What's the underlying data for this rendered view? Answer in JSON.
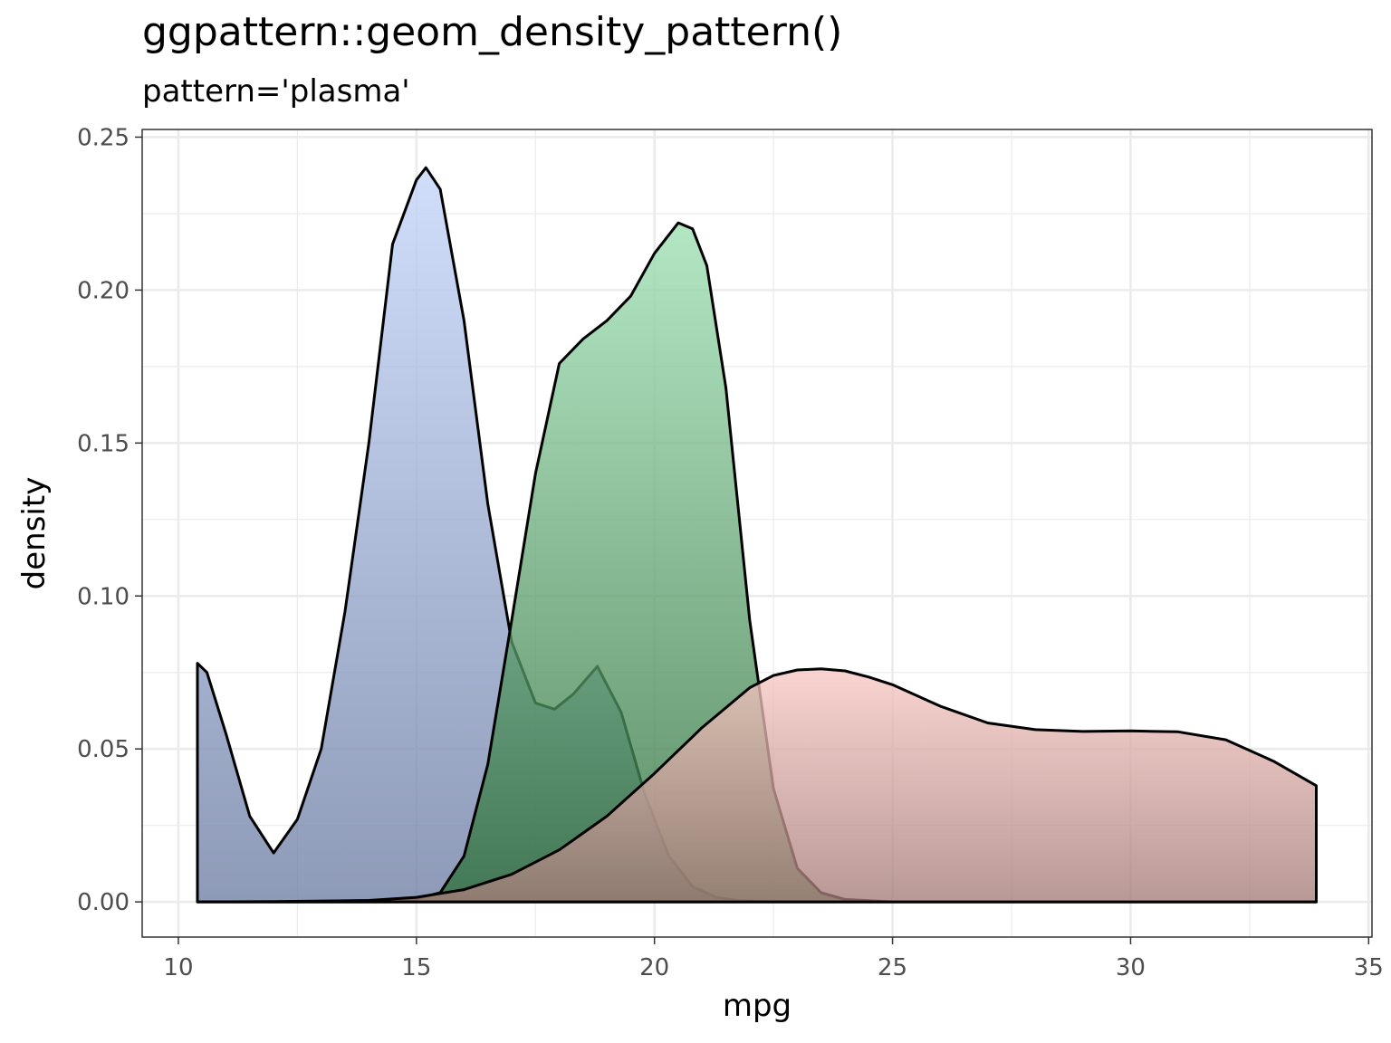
{
  "chart_data": {
    "type": "area",
    "title": "ggpattern::geom_density_pattern()",
    "subtitle": "pattern='plasma'",
    "xlabel": "mpg",
    "ylabel": "density",
    "xlim": [
      9.24,
      35.07
    ],
    "ylim": [
      -0.0115,
      0.2525
    ],
    "x_ticks": [
      10,
      15,
      20,
      25,
      30,
      35
    ],
    "x_tick_labels": [
      "10",
      "15",
      "20",
      "25",
      "30",
      "35"
    ],
    "y_ticks": [
      0,
      0.05,
      0.1,
      0.15,
      0.2,
      0.25
    ],
    "y_tick_labels": [
      "0.00",
      "0.05",
      "0.10",
      "0.15",
      "0.20",
      "0.25"
    ],
    "grid": true,
    "legend": "none",
    "series": [
      {
        "color_top": "#c3d5fa",
        "color_bottom": "#6e7ea3",
        "x": [
          10.4,
          10.6,
          11.0,
          11.5,
          12.0,
          12.5,
          13.0,
          13.5,
          14.0,
          14.5,
          15.0,
          15.2,
          15.5,
          16.0,
          16.5,
          17.0,
          17.5,
          17.9,
          18.3,
          18.8,
          19.3,
          19.8,
          20.3,
          20.8,
          21.3,
          21.8,
          22.5,
          23.5,
          25.0,
          27.0,
          30.0,
          33.9
        ],
        "y": [
          0.078,
          0.075,
          0.055,
          0.028,
          0.016,
          0.027,
          0.05,
          0.095,
          0.15,
          0.215,
          0.236,
          0.24,
          0.233,
          0.19,
          0.13,
          0.085,
          0.065,
          0.063,
          0.068,
          0.077,
          0.062,
          0.035,
          0.015,
          0.005,
          0.0015,
          0.0004,
          0.0001,
          0.0,
          0.0,
          0.0,
          0.0,
          0.0
        ]
      },
      {
        "color_top": "#9ee0b3",
        "color_bottom": "#2e6e3a",
        "x": [
          10.4,
          12.0,
          14.0,
          15.0,
          15.5,
          16.0,
          16.5,
          17.0,
          17.5,
          18.0,
          18.5,
          19.0,
          19.5,
          20.0,
          20.5,
          20.8,
          21.1,
          21.5,
          22.0,
          22.5,
          23.0,
          23.5,
          24.0,
          25.0,
          27.0,
          30.0,
          33.9
        ],
        "y": [
          0.0,
          0.0,
          0.0001,
          0.001,
          0.003,
          0.015,
          0.045,
          0.092,
          0.14,
          0.176,
          0.184,
          0.19,
          0.198,
          0.212,
          0.222,
          0.22,
          0.208,
          0.168,
          0.092,
          0.037,
          0.011,
          0.003,
          0.0008,
          0.0,
          0.0,
          0.0,
          0.0
        ]
      },
      {
        "color_top": "#f8c8c3",
        "color_bottom": "#a57c78",
        "x": [
          10.4,
          12.0,
          14.0,
          15.0,
          16.0,
          17.0,
          18.0,
          19.0,
          20.0,
          21.0,
          22.0,
          22.5,
          23.0,
          23.5,
          24.0,
          24.5,
          25.0,
          26.0,
          27.0,
          28.0,
          29.0,
          30.0,
          31.0,
          32.0,
          33.0,
          33.9
        ],
        "y": [
          0.0,
          0.0001,
          0.0005,
          0.0015,
          0.004,
          0.009,
          0.017,
          0.028,
          0.042,
          0.057,
          0.07,
          0.074,
          0.0758,
          0.0762,
          0.0755,
          0.0735,
          0.071,
          0.064,
          0.0585,
          0.0563,
          0.0557,
          0.0559,
          0.0556,
          0.053,
          0.046,
          0.038
        ]
      }
    ]
  }
}
